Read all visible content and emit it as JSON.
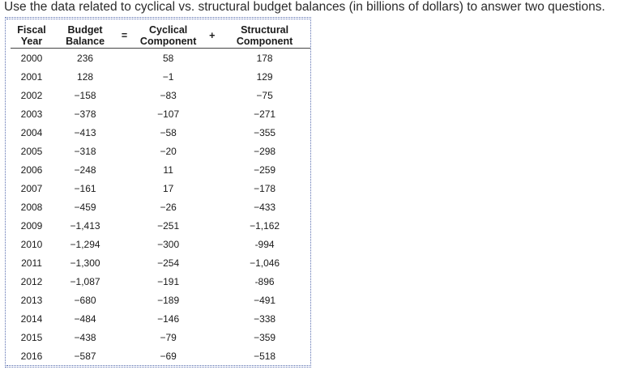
{
  "instructions": "Use the data related to cyclical vs. structural budget balances (in billions of dollars) to answer two questions.",
  "table": {
    "headers": {
      "year": "Fiscal Year",
      "budget": "Budget Balance",
      "equals": "=",
      "cyclical": "Cyclical Component",
      "plus": "+",
      "structural": "Structural Component"
    },
    "rows": [
      {
        "year": "2000",
        "budget": "236",
        "cyclical": "58",
        "structural": "178"
      },
      {
        "year": "2001",
        "budget": "128",
        "cyclical": "−1",
        "structural": "129"
      },
      {
        "year": "2002",
        "budget": "−158",
        "cyclical": "−83",
        "structural": "−75"
      },
      {
        "year": "2003",
        "budget": "−378",
        "cyclical": "−107",
        "structural": "−271"
      },
      {
        "year": "2004",
        "budget": "−413",
        "cyclical": "−58",
        "structural": "−355"
      },
      {
        "year": "2005",
        "budget": "−318",
        "cyclical": "−20",
        "structural": "−298"
      },
      {
        "year": "2006",
        "budget": "−248",
        "cyclical": "11",
        "structural": "−259"
      },
      {
        "year": "2007",
        "budget": "−161",
        "cyclical": "17",
        "structural": "−178"
      },
      {
        "year": "2008",
        "budget": "−459",
        "cyclical": "−26",
        "structural": "−433"
      },
      {
        "year": "2009",
        "budget": "−1,413",
        "cyclical": "−251",
        "structural": "−1,162"
      },
      {
        "year": "2010",
        "budget": "−1,294",
        "cyclical": "−300",
        "structural": "-994"
      },
      {
        "year": "2011",
        "budget": "−1,300",
        "cyclical": "−254",
        "structural": "−1,046"
      },
      {
        "year": "2012",
        "budget": "−1,087",
        "cyclical": "−191",
        "structural": "-896"
      },
      {
        "year": "2013",
        "budget": "−680",
        "cyclical": "−189",
        "structural": "−491"
      },
      {
        "year": "2014",
        "budget": "−484",
        "cyclical": "−146",
        "structural": "−338"
      },
      {
        "year": "2015",
        "budget": "−438",
        "cyclical": "−79",
        "structural": "−359"
      },
      {
        "year": "2016",
        "budget": "−587",
        "cyclical": "−69",
        "structural": "−518"
      }
    ]
  }
}
